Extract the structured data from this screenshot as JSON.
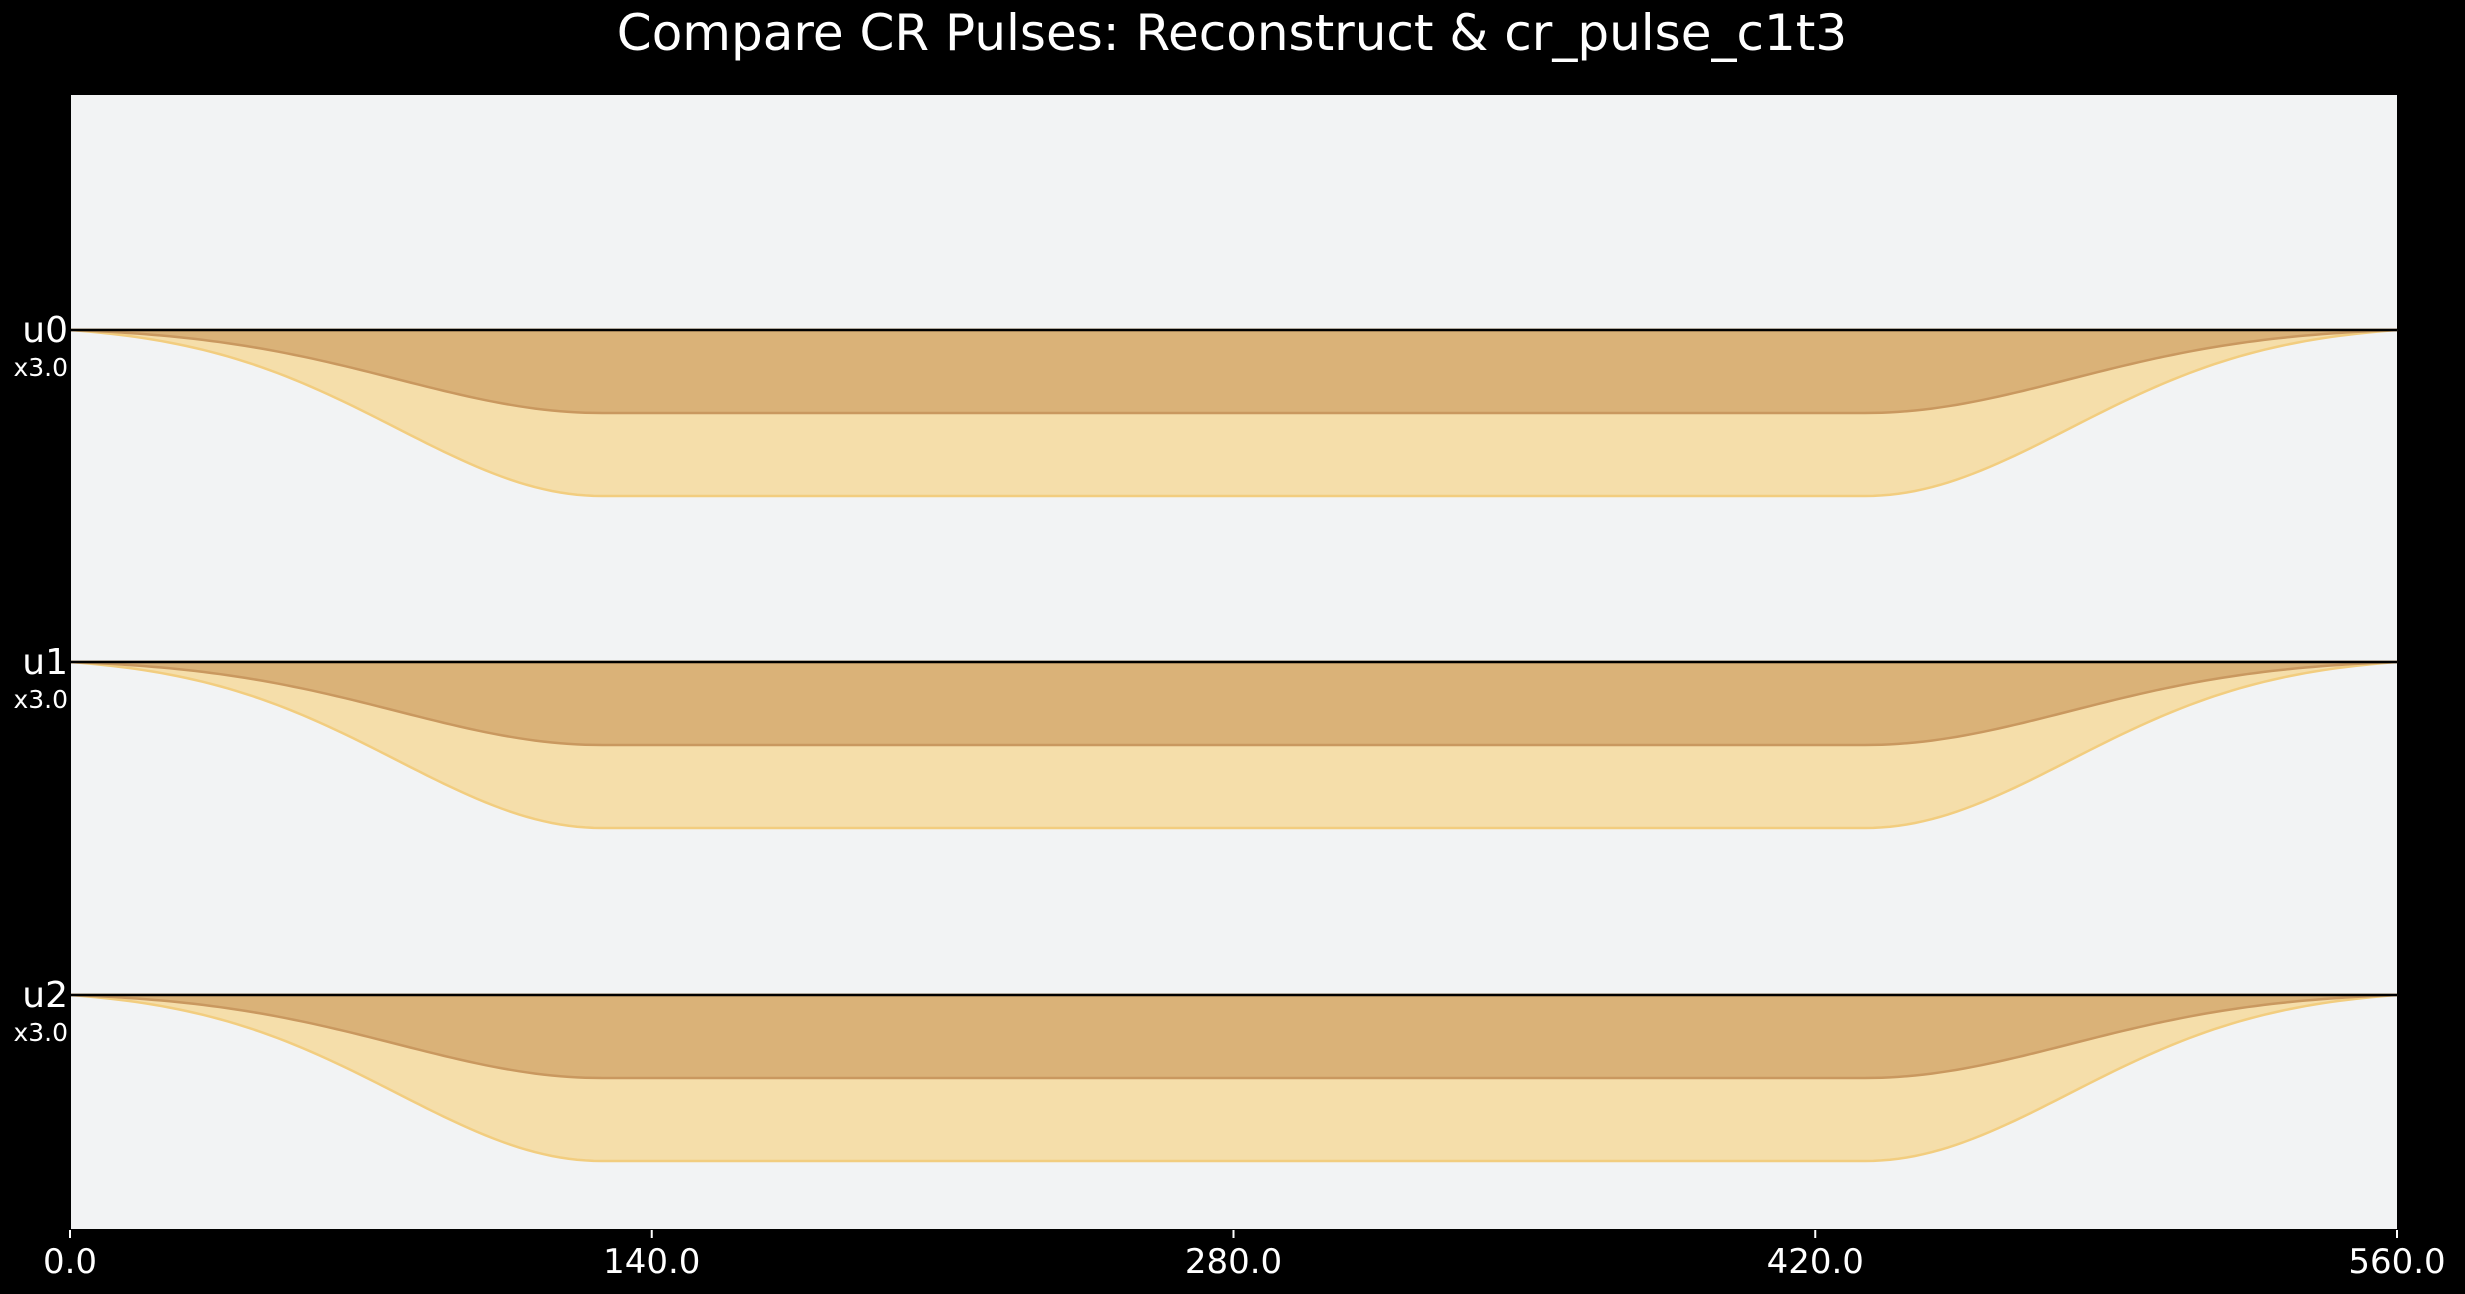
{
  "chart_data": {
    "type": "area",
    "title": "Compare CR Pulses: Reconstruct & cr_pulse_c1t3",
    "xlim": [
      0,
      560
    ],
    "x_ticks": [
      "0.0",
      "140.0",
      "280.0",
      "420.0",
      "560.0"
    ],
    "grid": false,
    "channels": [
      {
        "name": "u0",
        "scale": "x3.0"
      },
      {
        "name": "u1",
        "scale": "x3.0"
      },
      {
        "name": "u2",
        "scale": "x3.0"
      }
    ],
    "pulse_shape": {
      "kind": "gaussian_square",
      "duration": 560,
      "flat_start": 128,
      "flat_end": 432,
      "series": [
        {
          "amplitude": -0.5,
          "color": "#dab278",
          "edge": "#c9985f"
        },
        {
          "amplitude": -1.0,
          "color": "#f5deaa",
          "edge": "#f2cd7f"
        }
      ]
    },
    "colors": {
      "background": "#000000",
      "plot_area": "#f2f3f4",
      "baseline": "#000000"
    }
  }
}
